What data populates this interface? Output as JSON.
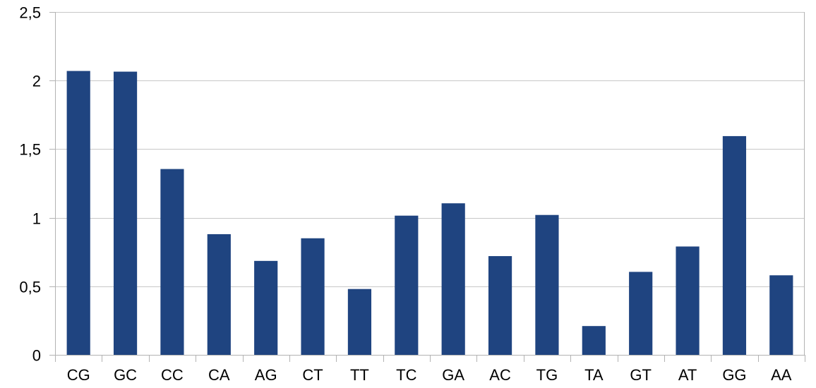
{
  "chart_data": {
    "type": "bar",
    "categories": [
      "CG",
      "GC",
      "CC",
      "CA",
      "AG",
      "CT",
      "TT",
      "TC",
      "GA",
      "AC",
      "TG",
      "TA",
      "GT",
      "AT",
      "GG",
      "AA"
    ],
    "values": [
      2.07,
      2.065,
      1.355,
      0.88,
      0.685,
      0.85,
      0.48,
      1.015,
      1.105,
      0.72,
      1.02,
      0.21,
      0.605,
      0.79,
      1.595,
      0.58
    ],
    "ylim": [
      0,
      2.5
    ],
    "yticks": [
      0,
      0.5,
      1,
      1.5,
      2,
      2.5
    ],
    "ytick_labels": [
      "0",
      "0,5",
      "1",
      "1,5",
      "2",
      "2,5"
    ],
    "grid": true,
    "legend": "none",
    "title": "",
    "xlabel": "",
    "ylabel": "",
    "bar_color": "#1f4480",
    "grid_color": "#c8c8c8",
    "axis_color": "#b3b3b3"
  }
}
